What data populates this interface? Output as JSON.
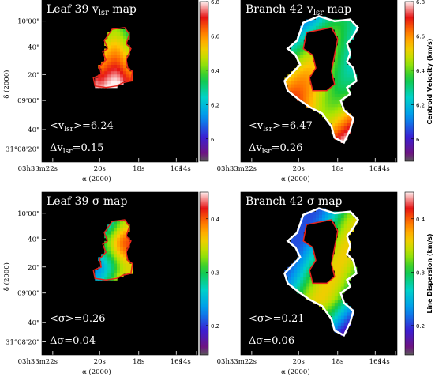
{
  "chart_data": [
    {
      "type": "heatmap",
      "title": "Leaf 39 v",
      "title_sub": "lsr",
      "title_suffix": "map",
      "mean_label": "<v",
      "mean_sub": "lsr",
      "mean_value": ">=6.24",
      "delta_label": "Δv",
      "delta_sub": "lsr",
      "delta_value": "=0.15",
      "xlabel": "α (2000)",
      "ylabel": "δ (2000)",
      "xticks": [
        "03h33m22s",
        "20s",
        "18s",
        "16s",
        "14s"
      ],
      "yticks": [
        "10'00\"",
        "40\"",
        "20\"",
        "09'00\"",
        "40\"",
        "31°08'20\""
      ],
      "colorbar": "velocity",
      "region": "leaf"
    },
    {
      "type": "heatmap",
      "title": "Branch 42 v",
      "title_sub": "lsr",
      "title_suffix": "map",
      "mean_label": "<v",
      "mean_sub": "lsr",
      "mean_value": ">=6.47",
      "delta_label": "Δv",
      "delta_sub": "lsr",
      "delta_value": "=0.26",
      "xlabel": "α (2000)",
      "xticks": [
        "03h33m22s",
        "20s",
        "18s",
        "16s",
        "14s"
      ],
      "colorbar": "velocity",
      "region": "branch"
    },
    {
      "type": "heatmap",
      "title": "Leaf 39 σ map",
      "title_sub": "",
      "title_suffix": "",
      "mean_label": "<σ>=0.26",
      "mean_sub": "",
      "mean_value": "",
      "delta_label": "Δσ=0.04",
      "delta_sub": "",
      "delta_value": "",
      "xlabel": "α (2000)",
      "ylabel": "δ (2000)",
      "xticks": [
        "03h33m22s",
        "20s",
        "18s",
        "16s",
        "14s"
      ],
      "yticks": [
        "10'00\"",
        "40\"",
        "20\"",
        "09'00\"",
        "40\"",
        "31°08'20\""
      ],
      "colorbar": "dispersion",
      "region": "leaf"
    },
    {
      "type": "heatmap",
      "title": "Branch 42 σ map",
      "title_sub": "",
      "title_suffix": "",
      "mean_label": "<σ>=0.21",
      "mean_sub": "",
      "mean_value": "",
      "delta_label": "Δσ=0.06",
      "delta_sub": "",
      "delta_value": "",
      "xlabel": "α (2000)",
      "xticks": [
        "03h33m22s",
        "20s",
        "18s",
        "16s",
        "14s"
      ],
      "colorbar": "dispersion",
      "region": "branch"
    }
  ],
  "colorbars": {
    "velocity": {
      "title": "Centroid Velocity (km/s)",
      "ticks": [
        "6.8",
        "6.6",
        "6.4",
        "6.2",
        "6"
      ],
      "tick_values": [
        6.8,
        6.6,
        6.4,
        6.2,
        6.0
      ],
      "range": [
        5.87,
        6.8
      ]
    },
    "dispersion": {
      "title": "Line Dispersion (km/s)",
      "ticks": [
        "0.4",
        "0.3",
        "0.2"
      ],
      "tick_values": [
        0.4,
        0.3,
        0.2
      ],
      "range": [
        0.145,
        0.45
      ]
    }
  },
  "colors": {
    "background": "#000000",
    "contour": "#e8241c",
    "branch_edge": "#ffffff"
  }
}
